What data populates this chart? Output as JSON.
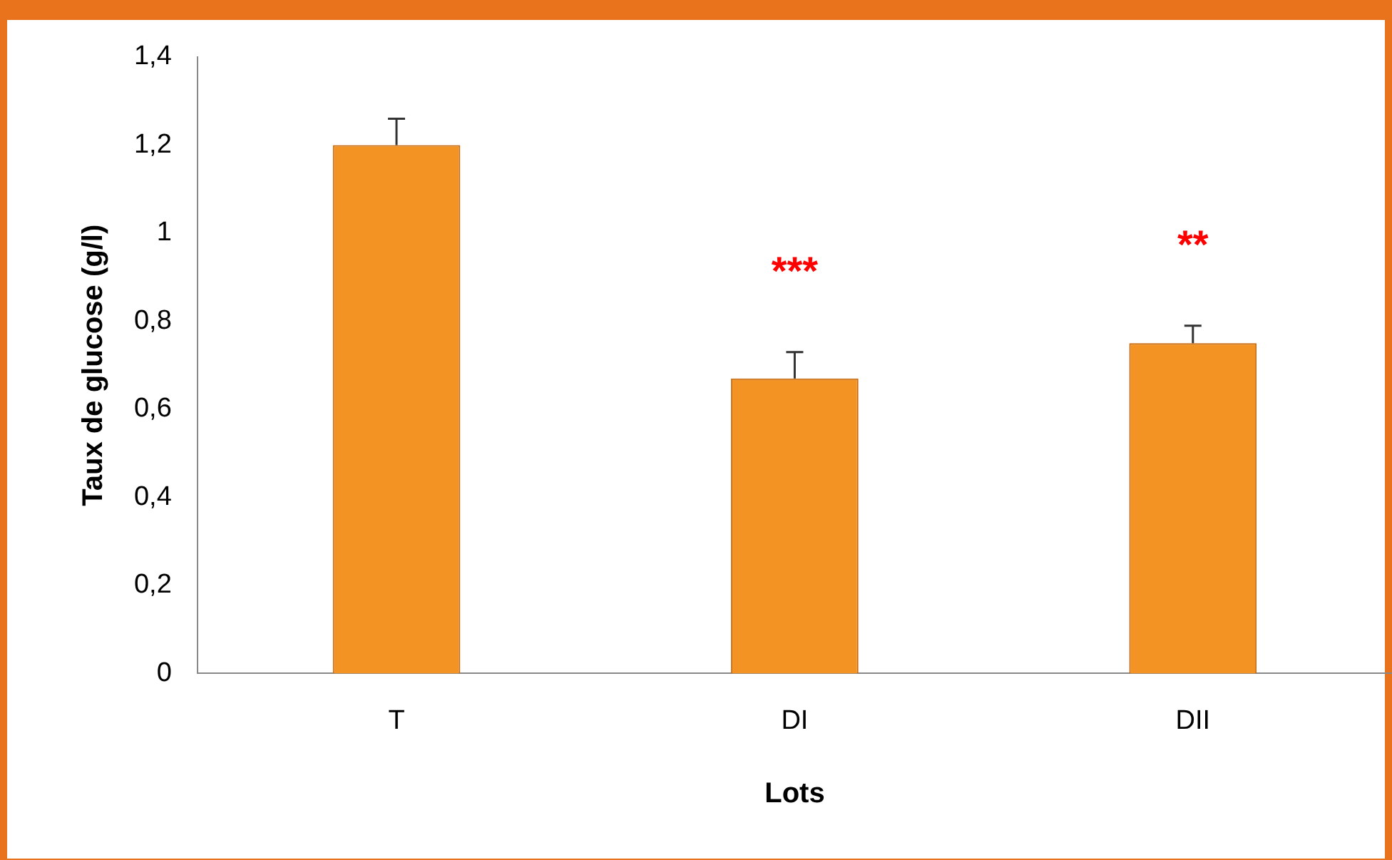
{
  "chart_data": {
    "type": "bar",
    "xlabel": "Lots",
    "ylabel": "Taux de glucose (g/l)",
    "categories": [
      "T",
      "DI",
      "DII"
    ],
    "values": [
      1.2,
      0.67,
      0.75
    ],
    "errors": [
      0.06,
      0.06,
      0.04
    ],
    "color": "#f39323",
    "ylim": [
      0,
      1.4
    ],
    "yticks": [
      {
        "value": 0,
        "label": "0"
      },
      {
        "value": 0.2,
        "label": "0,2"
      },
      {
        "value": 0.4,
        "label": "0,4"
      },
      {
        "value": 0.6,
        "label": "0,6"
      },
      {
        "value": 0.8,
        "label": "0,8"
      },
      {
        "value": 1,
        "label": "1"
      },
      {
        "value": 1.2,
        "label": "1,2"
      },
      {
        "value": 1.4,
        "label": "1,4"
      }
    ],
    "grid": false,
    "legend": false,
    "value_labels": [
      null,
      "***",
      "**"
    ]
  }
}
